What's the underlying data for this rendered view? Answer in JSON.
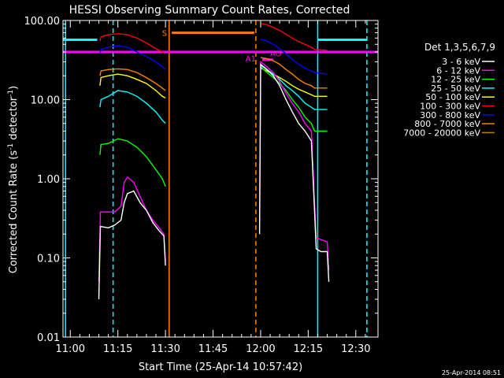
{
  "chart_data": {
    "type": "line",
    "title": "HESSI Observing Summary Count Rates, Corrected",
    "xlabel": "Start Time (25-Apr-14 10:57:42)",
    "ylabel_main": "Corrected Count Rate (s",
    "ylabel_sup1": "-1",
    "ylabel_mid": " detector",
    "ylabel_sup2": "-1",
    "ylabel_end": ")",
    "footer": "25-Apr-2014 08:51",
    "legend_title": "Det 1,3,5,6,7,9",
    "legend_placement": "right",
    "yscale": "log",
    "xlim": [
      "10:57:42",
      "12:37:00"
    ],
    "ylim": [
      0.01,
      100
    ],
    "x_ticks": [
      "11:00",
      "11:15",
      "11:30",
      "11:45",
      "12:00",
      "12:15",
      "12:30"
    ],
    "y_ticks": [
      "0.01",
      "0.10",
      "1.00",
      "10.00",
      "100.00"
    ],
    "series": [
      {
        "name": "3 - 6 keV",
        "color": "#ffffff",
        "segments": [
          [
            [
              "11:09:00",
              0.03
            ],
            [
              "11:09:30",
              0.25
            ],
            [
              "11:12",
              0.24
            ],
            [
              "11:14",
              0.26
            ],
            [
              "11:16",
              0.3
            ],
            [
              "11:17",
              0.5
            ],
            [
              "11:18",
              0.65
            ],
            [
              "11:20",
              0.7
            ],
            [
              "11:22",
              0.5
            ],
            [
              "11:24",
              0.4
            ],
            [
              "11:26",
              0.28
            ],
            [
              "11:28",
              0.22
            ],
            [
              "11:29:30",
              0.19
            ],
            [
              "11:30:00",
              0.08
            ]
          ],
          [
            [
              "11:59:40",
              0.2
            ],
            [
              "12:00",
              28
            ],
            [
              "12:02",
              24
            ],
            [
              "12:04",
              20
            ],
            [
              "12:06",
              15
            ],
            [
              "12:08",
              10
            ],
            [
              "12:10",
              7
            ],
            [
              "12:12",
              5
            ],
            [
              "12:14",
              4
            ],
            [
              "12:16",
              3
            ],
            [
              "12:17",
              0.4
            ],
            [
              "12:17:30",
              0.13
            ],
            [
              "12:19",
              0.12
            ],
            [
              "12:21",
              0.12
            ],
            [
              "12:21:30",
              0.05
            ]
          ]
        ]
      },
      {
        "name": "6 - 12 keV",
        "color": "#ff00ff",
        "segments": [
          [
            [
              "11:09:00",
              0.05
            ],
            [
              "11:09:30",
              0.38
            ],
            [
              "11:14",
              0.38
            ],
            [
              "11:16",
              0.45
            ],
            [
              "11:17",
              0.9
            ],
            [
              "11:18",
              1.05
            ],
            [
              "11:20",
              0.9
            ],
            [
              "11:22",
              0.6
            ],
            [
              "11:24",
              0.4
            ],
            [
              "11:26",
              0.3
            ],
            [
              "11:28",
              0.24
            ],
            [
              "11:29:30",
              0.2
            ],
            [
              "11:30:00",
              0.09
            ]
          ],
          [
            [
              "11:59:40",
              0.3
            ],
            [
              "12:00",
              30
            ],
            [
              "12:02",
              26
            ],
            [
              "12:04",
              22
            ],
            [
              "12:06",
              17
            ],
            [
              "12:08",
              12
            ],
            [
              "12:10",
              9
            ],
            [
              "12:12",
              7
            ],
            [
              "12:14",
              5
            ],
            [
              "12:16",
              4
            ],
            [
              "12:17",
              0.5
            ],
            [
              "12:17:30",
              0.18
            ],
            [
              "12:19",
              0.17
            ],
            [
              "12:21",
              0.16
            ],
            [
              "12:21:30",
              0.07
            ]
          ]
        ]
      },
      {
        "name": "12 - 25 keV",
        "color": "#00ff00",
        "segments": [
          [
            [
              "11:09:20",
              2.0
            ],
            [
              "11:09:40",
              2.7
            ],
            [
              "11:12",
              2.8
            ],
            [
              "11:15",
              3.2
            ],
            [
              "11:18",
              3.0
            ],
            [
              "11:21",
              2.5
            ],
            [
              "11:24",
              1.9
            ],
            [
              "11:27",
              1.3
            ],
            [
              "11:29",
              1.0
            ],
            [
              "11:30:00",
              0.8
            ]
          ],
          [
            [
              "12:00",
              26
            ],
            [
              "12:02",
              22
            ],
            [
              "12:04",
              19
            ],
            [
              "12:06",
              16
            ],
            [
              "12:08",
              13
            ],
            [
              "12:10",
              10
            ],
            [
              "12:12",
              8
            ],
            [
              "12:14",
              6
            ],
            [
              "12:16",
              5
            ],
            [
              "12:17",
              4
            ],
            [
              "12:21",
              4
            ]
          ]
        ]
      },
      {
        "name": "25 - 50 keV",
        "color": "#00ffff",
        "segments": [
          [
            [
              "11:09:20",
              8
            ],
            [
              "11:09:40",
              10
            ],
            [
              "11:12",
              11
            ],
            [
              "11:15",
              13
            ],
            [
              "11:18",
              12.5
            ],
            [
              "11:21",
              11
            ],
            [
              "11:24",
              9
            ],
            [
              "11:27",
              7
            ],
            [
              "11:29",
              5.5
            ],
            [
              "11:30:00",
              5
            ]
          ],
          [
            [
              "12:00",
              27
            ],
            [
              "12:02",
              24
            ],
            [
              "12:04",
              21
            ],
            [
              "12:06",
              18
            ],
            [
              "12:08",
              15
            ],
            [
              "12:10",
              13
            ],
            [
              "12:12",
              11
            ],
            [
              "12:14",
              9
            ],
            [
              "12:16",
              8
            ],
            [
              "12:17",
              7.5
            ],
            [
              "12:21",
              7.5
            ]
          ]
        ]
      },
      {
        "name": "50 - 100 keV",
        "color": "#ffff00",
        "segments": [
          [
            [
              "11:09:20",
              15
            ],
            [
              "11:09:40",
              19
            ],
            [
              "11:12",
              20
            ],
            [
              "11:15",
              21
            ],
            [
              "11:18",
              20
            ],
            [
              "11:21",
              18
            ],
            [
              "11:24",
              16
            ],
            [
              "11:27",
              13
            ],
            [
              "11:29",
              11
            ],
            [
              "11:30:00",
              10.5
            ]
          ],
          [
            [
              "12:00",
              25
            ],
            [
              "12:02",
              23
            ],
            [
              "12:04",
              21
            ],
            [
              "12:06",
              19
            ],
            [
              "12:08",
              17
            ],
            [
              "12:10",
              15
            ],
            [
              "12:12",
              13.5
            ],
            [
              "12:14",
              12.5
            ],
            [
              "12:16",
              11.5
            ],
            [
              "12:17",
              11
            ],
            [
              "12:21",
              11
            ]
          ]
        ]
      },
      {
        "name": "100 - 300 keV",
        "color": "#ff0000",
        "segments": [
          [
            [
              "11:09:20",
              55
            ],
            [
              "11:09:40",
              62
            ],
            [
              "11:12",
              66
            ],
            [
              "11:15",
              68
            ],
            [
              "11:18",
              66
            ],
            [
              "11:21",
              60
            ],
            [
              "11:24",
              52
            ],
            [
              "11:27",
              44
            ],
            [
              "11:29",
              40
            ],
            [
              "11:30:00",
              38
            ]
          ],
          [
            [
              "12:00",
              92
            ],
            [
              "12:02",
              88
            ],
            [
              "12:04",
              82
            ],
            [
              "12:06",
              75
            ],
            [
              "12:08",
              67
            ],
            [
              "12:10",
              60
            ],
            [
              "12:12",
              54
            ],
            [
              "12:14",
              50
            ],
            [
              "12:16",
              46
            ],
            [
              "12:17",
              43
            ],
            [
              "12:21",
              42
            ]
          ]
        ]
      },
      {
        "name": "300 - 800 keV",
        "color": "#0000ff",
        "segments": [
          [
            [
              "11:09:20",
              38
            ],
            [
              "11:09:40",
              43
            ],
            [
              "11:12",
              46
            ],
            [
              "11:15",
              48
            ],
            [
              "11:18",
              46
            ],
            [
              "11:21",
              40
            ],
            [
              "11:24",
              35
            ],
            [
              "11:27",
              30
            ],
            [
              "11:29",
              26
            ],
            [
              "11:30:00",
              24
            ]
          ],
          [
            [
              "12:00",
              58
            ],
            [
              "12:02",
              55
            ],
            [
              "12:04",
              50
            ],
            [
              "12:06",
              44
            ],
            [
              "12:08",
              38
            ],
            [
              "12:10",
              32
            ],
            [
              "12:12",
              28
            ],
            [
              "12:14",
              25
            ],
            [
              "12:16",
              23
            ],
            [
              "12:17",
              22
            ],
            [
              "12:21",
              21
            ]
          ]
        ]
      },
      {
        "name": "800 - 7000 keV",
        "color": "#ff8000",
        "segments": [
          [
            [
              "11:09:20",
              20
            ],
            [
              "11:09:40",
              23
            ],
            [
              "11:12",
              24
            ],
            [
              "11:15",
              24.5
            ],
            [
              "11:18",
              24
            ],
            [
              "11:21",
              22
            ],
            [
              "11:24",
              19
            ],
            [
              "11:27",
              16
            ],
            [
              "11:29",
              14
            ],
            [
              "11:30:00",
              13
            ]
          ],
          [
            [
              "12:00",
              34
            ],
            [
              "12:02",
              33
            ],
            [
              "12:04",
              31
            ],
            [
              "12:06",
              28
            ],
            [
              "12:08",
              24
            ],
            [
              "12:10",
              21
            ],
            [
              "12:12",
              18
            ],
            [
              "12:14",
              16
            ],
            [
              "12:16",
              15
            ],
            [
              "12:17",
              14
            ],
            [
              "12:21",
              14
            ]
          ]
        ]
      },
      {
        "name": "7000 - 20000 keV",
        "color": "#c08000",
        "segments": []
      }
    ],
    "attenuator_lines": [
      {
        "label": "S",
        "color": "#ff8000",
        "from": "11:32:00",
        "to": "11:58:00",
        "y": 70,
        "start_vline": "11:31:10",
        "end_vline": "11:58:30",
        "start_style": "solid",
        "end_style": "dashed"
      },
      {
        "label": "A1",
        "color": "#ff00ff",
        "from": "10:57:42",
        "to": "12:37:00",
        "y": 40,
        "start_vline": "",
        "end_vline": "",
        "start_style": "solid",
        "end_style": "solid"
      },
      {
        "label": "AO",
        "color": "#ff00ff",
        "from": "12:00:30",
        "to": "12:04:00",
        "y": 32,
        "start_vline": "",
        "end_vline": "",
        "start_style": "solid",
        "end_style": "solid"
      },
      {
        "label": "",
        "color": "#00ffff",
        "from": "10:57:42",
        "to": "11:08:30",
        "y": 57,
        "start_vline": "",
        "end_vline": "",
        "start_style": "solid",
        "end_style": "solid"
      },
      {
        "label": "",
        "color": "#00ffff",
        "from": "12:18:00",
        "to": "12:33:30",
        "y": 57,
        "start_vline": "",
        "end_vline": "",
        "start_style": "solid",
        "end_style": "solid"
      }
    ],
    "cyan_vlines": [
      {
        "time": "10:58:30",
        "style": "solid"
      },
      {
        "time": "11:13:30",
        "style": "dashed"
      },
      {
        "time": "12:18:00",
        "style": "solid"
      },
      {
        "time": "12:33:30",
        "style": "dashed"
      }
    ]
  }
}
